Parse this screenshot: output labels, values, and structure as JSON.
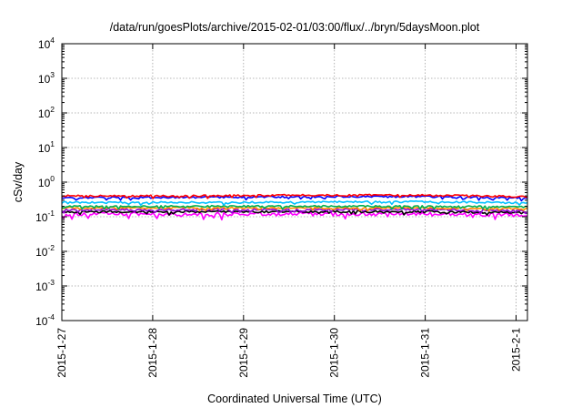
{
  "chart_data": {
    "type": "line",
    "title": "/data/run/goesPlots/archive/2015-02-01/03:00/flux/../bryn/5daysMoon.plot",
    "xlabel": "Coordinated Universal Time (UTC)",
    "ylabel": "cSv/day",
    "y_scale": "log",
    "ylim": [
      0.0001,
      10000
    ],
    "xlim": [
      "2015-01-27T00:00",
      "2015-02-01T03:00"
    ],
    "grid": true,
    "legend": "none",
    "y_ticks": [
      {
        "base": "10",
        "exp": "-4",
        "value": 0.0001
      },
      {
        "base": "10",
        "exp": "-3",
        "value": 0.001
      },
      {
        "base": "10",
        "exp": "-2",
        "value": 0.01
      },
      {
        "base": "10",
        "exp": "-1",
        "value": 0.1
      },
      {
        "base": "10",
        "exp": "0",
        "value": 1
      },
      {
        "base": "10",
        "exp": "1",
        "value": 10
      },
      {
        "base": "10",
        "exp": "2",
        "value": 100
      },
      {
        "base": "10",
        "exp": "3",
        "value": 1000
      },
      {
        "base": "10",
        "exp": "4",
        "value": 10000
      }
    ],
    "x_ticks": [
      {
        "label": "2015-1-27",
        "date": "2015-01-27T00:00"
      },
      {
        "label": "2015-1-28",
        "date": "2015-01-28T00:00"
      },
      {
        "label": "2015-1-29",
        "date": "2015-01-29T00:00"
      },
      {
        "label": "2015-1-30",
        "date": "2015-01-30T00:00"
      },
      {
        "label": "2015-1-31",
        "date": "2015-01-31T00:00"
      },
      {
        "label": "2015-2-1",
        "date": "2015-02-01T00:00"
      }
    ],
    "series": [
      {
        "color": "#ff00ff",
        "baseline": 0.115,
        "noise": 0.11,
        "values": [
          {
            "x": "2015-01-27T00:00",
            "y": 0.12
          },
          {
            "x": "2015-01-28T00:00",
            "y": 0.12
          },
          {
            "x": "2015-01-29T00:00",
            "y": 0.12
          },
          {
            "x": "2015-01-30T00:00",
            "y": 0.12
          },
          {
            "x": "2015-01-31T00:00",
            "y": 0.12
          },
          {
            "x": "2015-02-01T03:00",
            "y": 0.11
          }
        ]
      },
      {
        "color": "#000000",
        "baseline": 0.14,
        "noise": 0.06,
        "values": [
          {
            "x": "2015-01-27T00:00",
            "y": 0.14
          },
          {
            "x": "2015-01-28T00:00",
            "y": 0.14
          },
          {
            "x": "2015-01-29T00:00",
            "y": 0.14
          },
          {
            "x": "2015-01-30T00:00",
            "y": 0.14
          },
          {
            "x": "2015-01-31T00:00",
            "y": 0.14
          },
          {
            "x": "2015-02-01T03:00",
            "y": 0.13
          }
        ]
      },
      {
        "color": "#9400d3",
        "baseline": 0.16,
        "noise": 0.06,
        "values": [
          {
            "x": "2015-01-27T00:00",
            "y": 0.16
          },
          {
            "x": "2015-01-28T00:00",
            "y": 0.16
          },
          {
            "x": "2015-01-29T00:00",
            "y": 0.16
          },
          {
            "x": "2015-01-30T00:00",
            "y": 0.16
          },
          {
            "x": "2015-01-31T00:00",
            "y": 0.16
          },
          {
            "x": "2015-02-01T03:00",
            "y": 0.15
          }
        ]
      },
      {
        "color": "#ff8c00",
        "baseline": 0.18,
        "noise": 0.05,
        "values": [
          {
            "x": "2015-01-27T00:00",
            "y": 0.18
          },
          {
            "x": "2015-01-28T00:00",
            "y": 0.18
          },
          {
            "x": "2015-01-29T00:00",
            "y": 0.18
          },
          {
            "x": "2015-01-30T00:00",
            "y": 0.18
          },
          {
            "x": "2015-01-31T00:00",
            "y": 0.18
          },
          {
            "x": "2015-02-01T03:00",
            "y": 0.17
          }
        ]
      },
      {
        "color": "#00b050",
        "baseline": 0.2,
        "noise": 0.05,
        "values": [
          {
            "x": "2015-01-27T00:00",
            "y": 0.2
          },
          {
            "x": "2015-01-28T00:00",
            "y": 0.2
          },
          {
            "x": "2015-01-29T00:00",
            "y": 0.2
          },
          {
            "x": "2015-01-30T00:00",
            "y": 0.2
          },
          {
            "x": "2015-01-31T00:00",
            "y": 0.2
          },
          {
            "x": "2015-02-01T03:00",
            "y": 0.19
          }
        ]
      },
      {
        "color": "#00c0ff",
        "baseline": 0.26,
        "noise": 0.05,
        "values": [
          {
            "x": "2015-01-27T00:00",
            "y": 0.26
          },
          {
            "x": "2015-01-28T00:00",
            "y": 0.26
          },
          {
            "x": "2015-01-29T00:00",
            "y": 0.26
          },
          {
            "x": "2015-01-30T00:00",
            "y": 0.27
          },
          {
            "x": "2015-01-31T00:00",
            "y": 0.27
          },
          {
            "x": "2015-02-01T03:00",
            "y": 0.25
          }
        ]
      },
      {
        "color": "#0000ff",
        "baseline": 0.36,
        "noise": 0.05,
        "values": [
          {
            "x": "2015-01-27T00:00",
            "y": 0.36
          },
          {
            "x": "2015-01-28T00:00",
            "y": 0.36
          },
          {
            "x": "2015-01-29T00:00",
            "y": 0.37
          },
          {
            "x": "2015-01-30T00:00",
            "y": 0.38
          },
          {
            "x": "2015-01-31T00:00",
            "y": 0.38
          },
          {
            "x": "2015-02-01T03:00",
            "y": 0.34
          }
        ]
      },
      {
        "color": "#ff0000",
        "baseline": 0.4,
        "noise": 0.05,
        "values": [
          {
            "x": "2015-01-27T00:00",
            "y": 0.4
          },
          {
            "x": "2015-01-28T00:00",
            "y": 0.4
          },
          {
            "x": "2015-01-29T00:00",
            "y": 0.41
          },
          {
            "x": "2015-01-30T00:00",
            "y": 0.42
          },
          {
            "x": "2015-01-31T00:00",
            "y": 0.42
          },
          {
            "x": "2015-02-01T03:00",
            "y": 0.38
          }
        ]
      }
    ]
  }
}
